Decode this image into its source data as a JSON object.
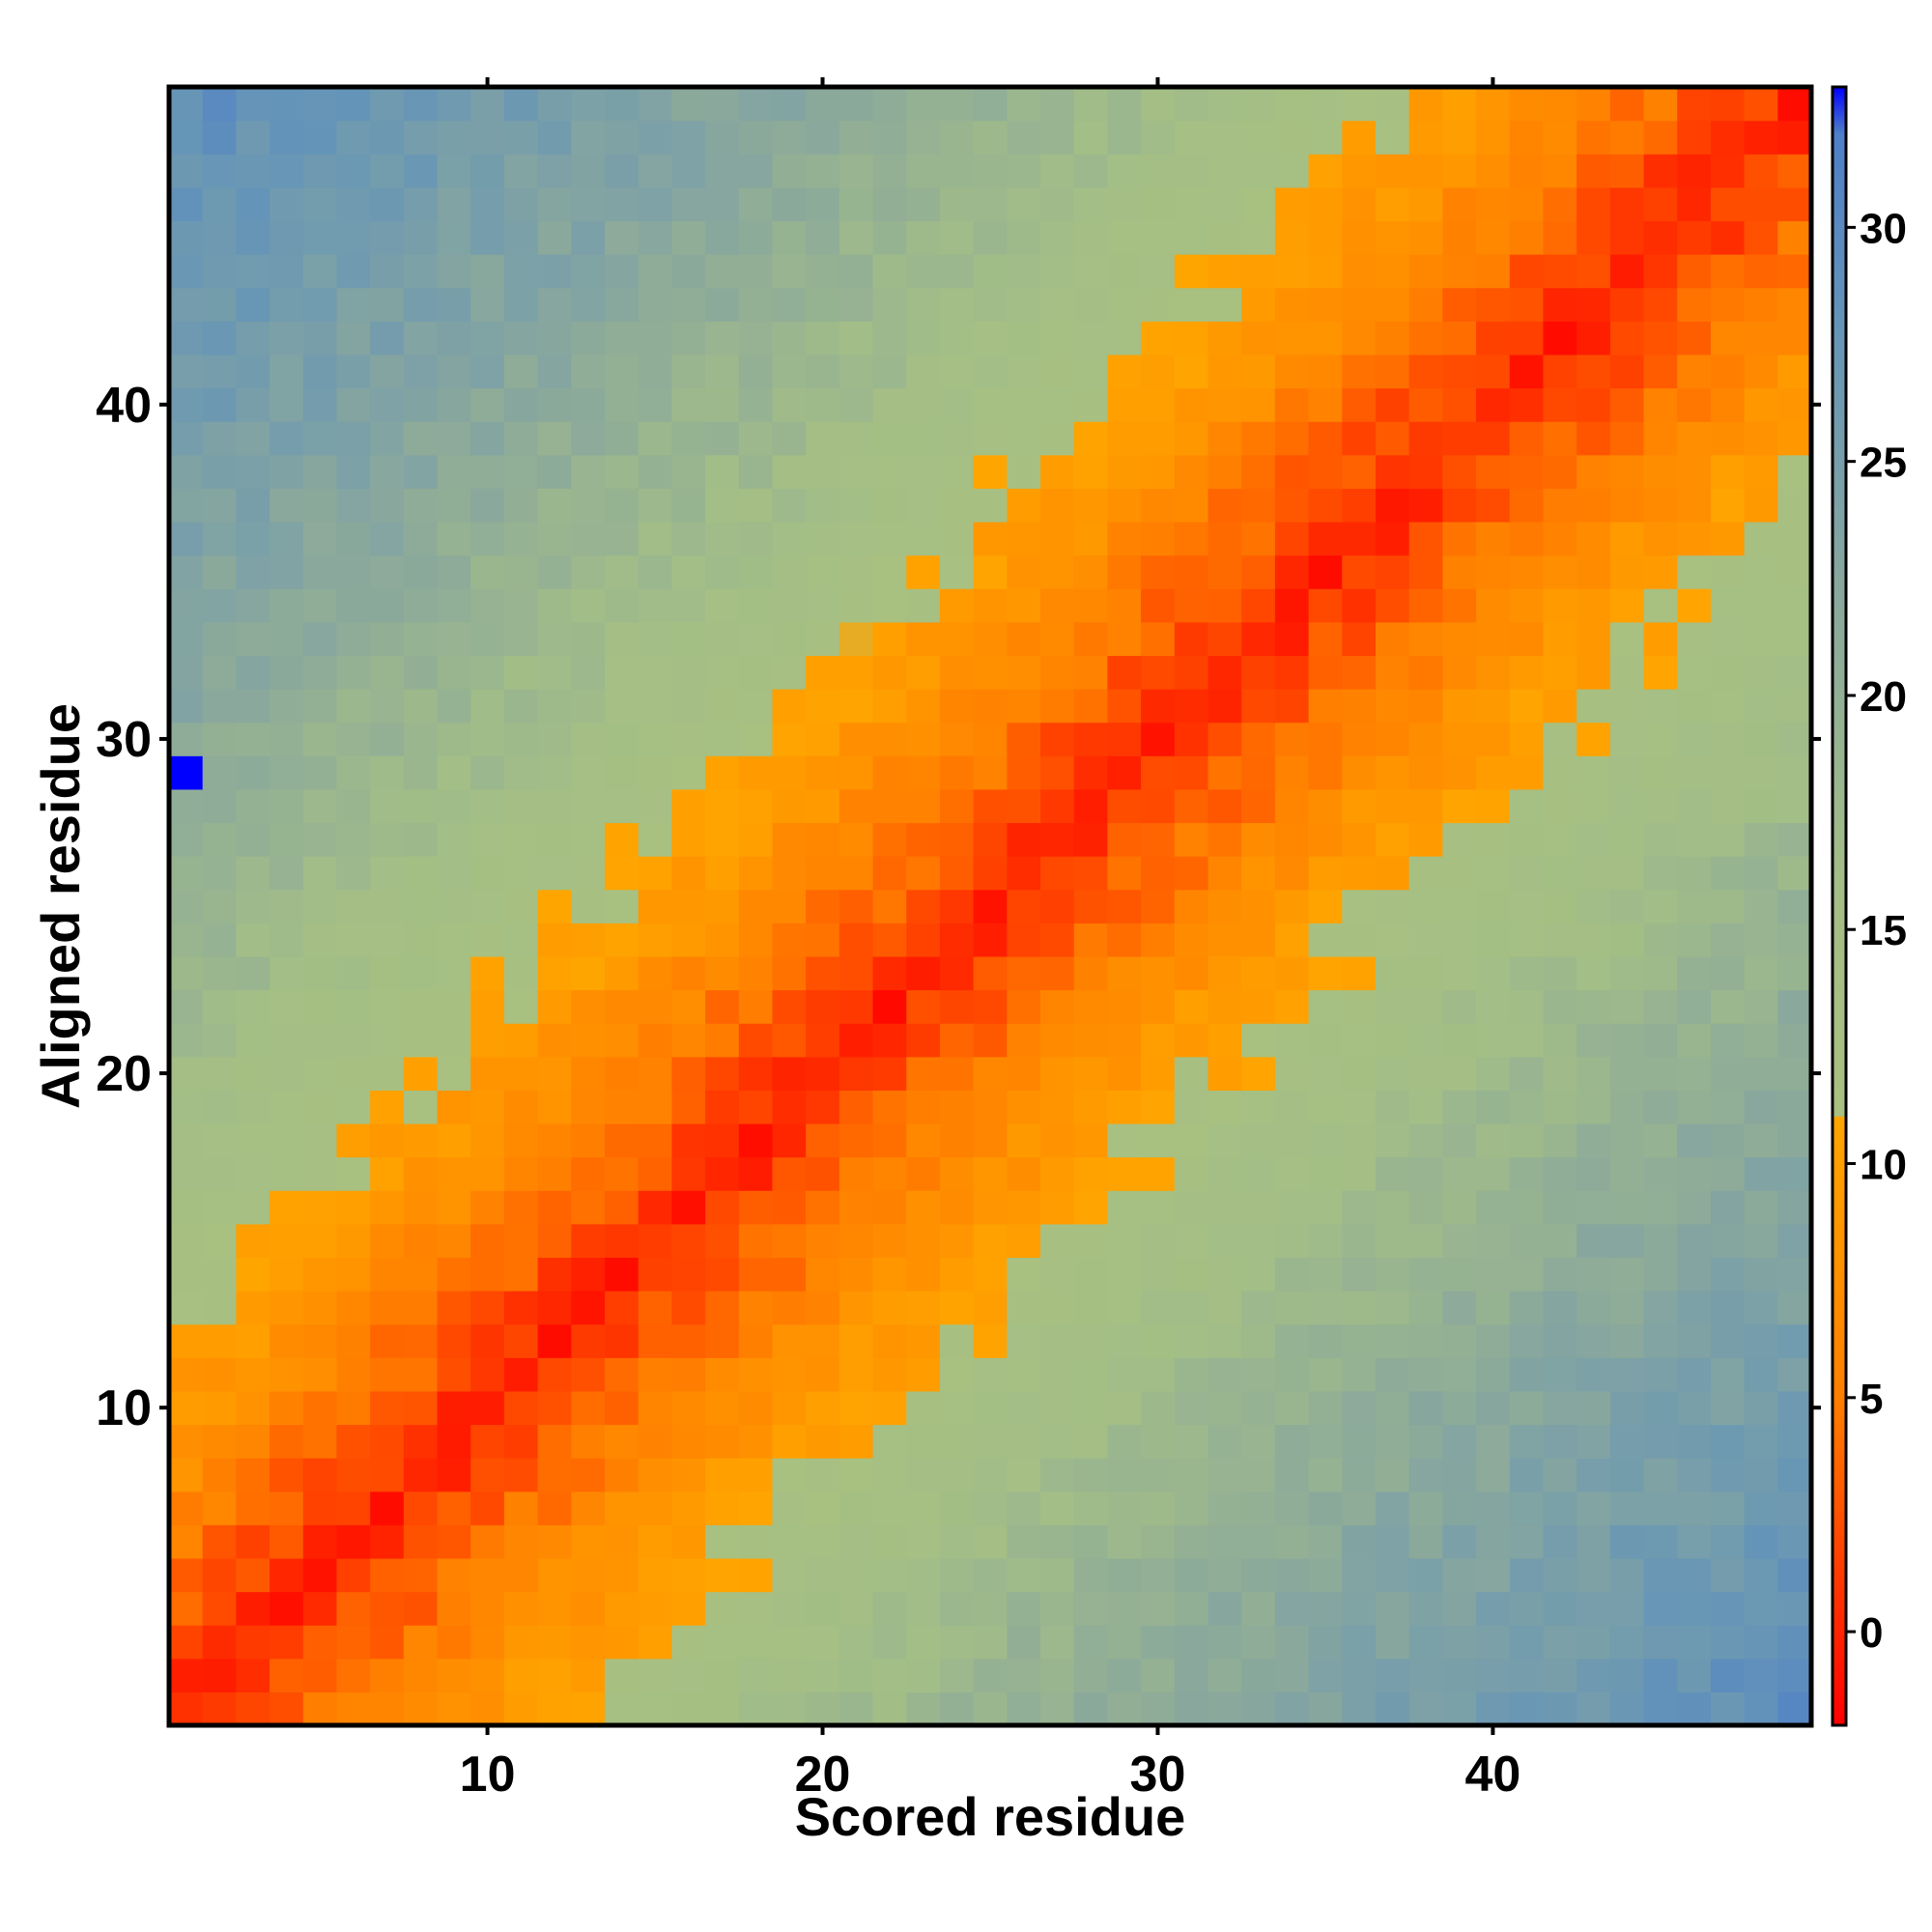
{
  "chart_data": {
    "type": "heatmap",
    "title": "",
    "xlabel": "Scored residue",
    "ylabel": "Aligned residue",
    "x_range": [
      1,
      49
    ],
    "y_range": [
      1,
      49
    ],
    "x_ticks": [
      10,
      20,
      30,
      40
    ],
    "y_ticks": [
      10,
      20,
      30,
      40
    ],
    "colorbar": {
      "ticks": [
        0,
        5,
        10,
        15,
        20,
        25,
        30
      ],
      "range": [
        -2,
        33
      ],
      "colors": [
        {
          "value": -2,
          "color": "#ff0000"
        },
        {
          "value": 5,
          "color": "#ff7f00"
        },
        {
          "value": 11,
          "color": "#ffa500"
        },
        {
          "value": 11.01,
          "color": "#a8c080"
        },
        {
          "value": 16,
          "color": "#a3be86"
        },
        {
          "value": 22,
          "color": "#8aa89c"
        },
        {
          "value": 28,
          "color": "#6494b8"
        },
        {
          "value": 32,
          "color": "#4f7fc8"
        },
        {
          "value": 33,
          "color": "#0000ff"
        }
      ]
    },
    "description_of_values": "Matrix value at (scored x, aligned y); low values along the diagonal, rising away from it.",
    "diagonal_band_values": {
      "distance_0": 0,
      "distance_2": 2,
      "distance_5": 5,
      "distance_8": 8,
      "distance_12": 11,
      "distance_15": 14,
      "distance_20": 17,
      "distance_30": 22,
      "distance_40": 26,
      "distance_48": 29
    },
    "maximum_cell": {
      "x": 1,
      "y": 29,
      "value": 33
    }
  }
}
